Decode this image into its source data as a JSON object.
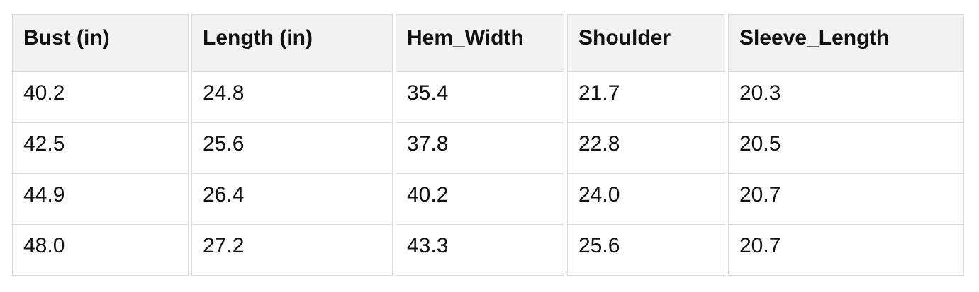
{
  "table": {
    "columns": [
      "Bust (in)",
      "Length (in)",
      "Hem_Width",
      "Shoulder",
      "Sleeve_Length"
    ],
    "rows": [
      [
        "40.2",
        "24.8",
        "35.4",
        "21.7",
        "20.3"
      ],
      [
        "42.5",
        "25.6",
        "37.8",
        "22.8",
        "20.5"
      ],
      [
        "44.9",
        "26.4",
        "40.2",
        "24.0",
        "20.7"
      ],
      [
        "48.0",
        "27.2",
        "43.3",
        "25.6",
        "20.7"
      ]
    ]
  },
  "chart_data": {
    "type": "table",
    "title": "",
    "columns": [
      "Bust (in)",
      "Length (in)",
      "Hem_Width",
      "Shoulder",
      "Sleeve_Length"
    ],
    "rows": [
      [
        40.2,
        24.8,
        35.4,
        21.7,
        20.3
      ],
      [
        42.5,
        25.6,
        37.8,
        22.8,
        20.5
      ],
      [
        44.9,
        26.4,
        40.2,
        24.0,
        20.7
      ],
      [
        48.0,
        27.2,
        43.3,
        25.6,
        20.7
      ]
    ],
    "layout_hints": {
      "header_background": "#f2f2f2",
      "row_background": "#ffffff",
      "border_color": "#dcdcdc",
      "text_color": "#111111",
      "column_gap": true
    }
  }
}
